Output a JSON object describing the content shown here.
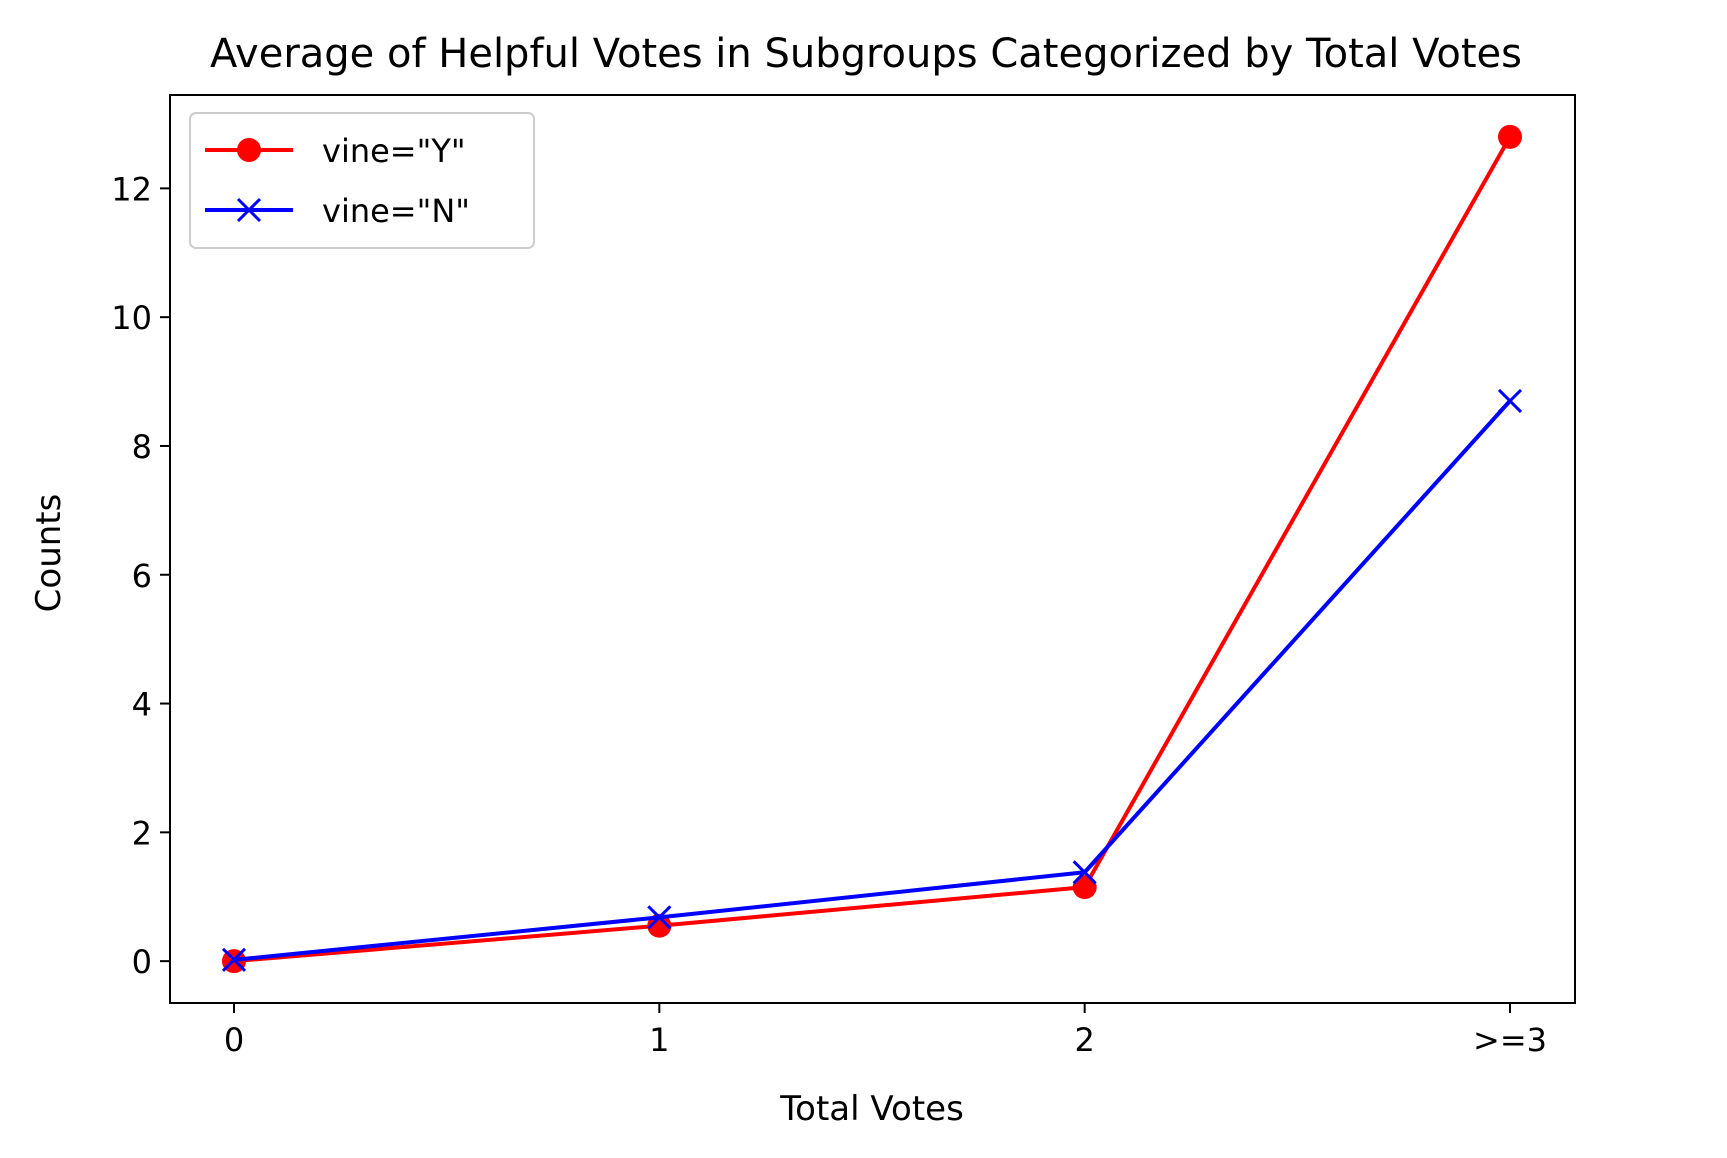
{
  "chart_data": {
    "type": "line",
    "title": "Average of Helpful Votes in Subgroups Categorized by Total Votes",
    "xlabel": "Total Votes",
    "ylabel": "Counts",
    "categories": [
      "0",
      "1",
      "2",
      ">=3"
    ],
    "ylim": [
      -0.65,
      13.45
    ],
    "yticks": [
      0,
      2,
      4,
      6,
      8,
      10,
      12
    ],
    "grid": false,
    "legend_position": "upper-left",
    "series": [
      {
        "name": "vine=\"Y\"",
        "color": "#ff0000",
        "marker": "circle",
        "values": [
          0,
          0.55,
          1.15,
          12.8
        ]
      },
      {
        "name": "vine=\"N\"",
        "color": "#0000ff",
        "marker": "x",
        "values": [
          0.02,
          0.68,
          1.38,
          8.7
        ]
      }
    ]
  }
}
